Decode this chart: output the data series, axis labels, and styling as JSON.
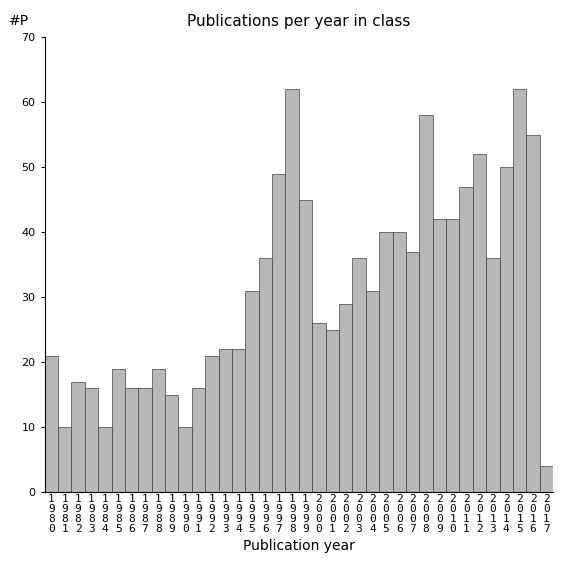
{
  "title": "Publications per year in class",
  "xlabel": "Publication year",
  "ylabel": "#P",
  "ylim": [
    0,
    70
  ],
  "yticks": [
    0,
    10,
    20,
    30,
    40,
    50,
    60,
    70
  ],
  "bar_color": "#b8b8b8",
  "bar_edgecolor": "#404040",
  "years": [
    1980,
    1981,
    1982,
    1983,
    1984,
    1985,
    1986,
    1987,
    1988,
    1989,
    1990,
    1991,
    1992,
    1993,
    1994,
    1995,
    1996,
    1997,
    1998,
    1999,
    2000,
    2001,
    2002,
    2003,
    2004,
    2005,
    2006,
    2007,
    2008,
    2009,
    2010,
    2011,
    2012,
    2013,
    2014,
    2015,
    2016,
    2017
  ],
  "values": [
    21,
    10,
    17,
    16,
    10,
    19,
    16,
    16,
    19,
    15,
    10,
    16,
    21,
    22,
    22,
    31,
    36,
    49,
    62,
    45,
    26,
    25,
    29,
    36,
    31,
    40,
    40,
    37,
    58,
    42,
    42,
    47,
    52,
    36,
    50,
    62,
    55,
    4
  ],
  "figsize": [
    5.67,
    5.67
  ],
  "dpi": 100,
  "title_fontsize": 11,
  "label_fontsize": 10,
  "tick_fontsize": 8
}
